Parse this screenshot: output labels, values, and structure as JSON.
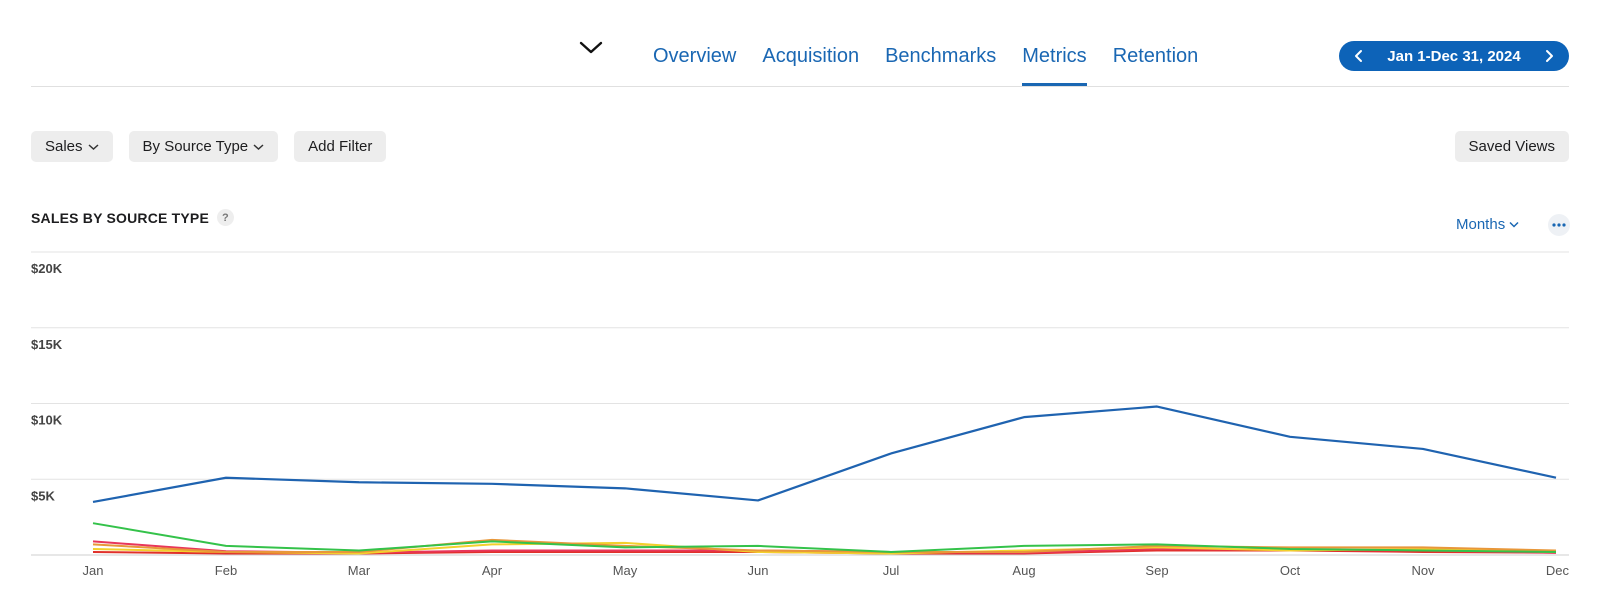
{
  "nav": {
    "tabs": [
      {
        "label": "Overview",
        "active": false
      },
      {
        "label": "Acquisition",
        "active": false
      },
      {
        "label": "Benchmarks",
        "active": false
      },
      {
        "label": "Metrics",
        "active": true
      },
      {
        "label": "Retention",
        "active": false
      }
    ],
    "date_range": "Jan 1-Dec 31, 2024"
  },
  "filters": {
    "metric": "Sales",
    "group_by": "By Source Type",
    "add_filter": "Add Filter",
    "saved_views": "Saved Views"
  },
  "chart_header": {
    "title": "SALES BY SOURCE TYPE",
    "help": "?",
    "period": "Months"
  },
  "colors": {
    "accent": "#1a67b3",
    "pill": "#0d63b8"
  },
  "chart_data": {
    "type": "line",
    "categories": [
      "Jan",
      "Feb",
      "Mar",
      "Apr",
      "May",
      "Jun",
      "Jul",
      "Aug",
      "Sep",
      "Oct",
      "Nov",
      "Dec"
    ],
    "y_ticks": [
      "$20K",
      "$15K",
      "$10K",
      "$5K"
    ],
    "y_tick_values": [
      20000,
      15000,
      10000,
      5000
    ],
    "ylim": [
      0,
      20000
    ],
    "grid": true,
    "series": [
      {
        "color": "#1f63b0",
        "values": [
          3500,
          5100,
          4800,
          4700,
          4400,
          3600,
          6700,
          9100,
          9800,
          7800,
          7000,
          5100
        ]
      },
      {
        "color": "#34c24a",
        "values": [
          2100,
          600,
          300,
          900,
          500,
          600,
          200,
          600,
          700,
          400,
          300,
          200
        ]
      },
      {
        "color": "#e8973a",
        "values": [
          700,
          200,
          200,
          1000,
          600,
          300,
          200,
          200,
          600,
          500,
          500,
          300
        ]
      },
      {
        "color": "#f3d02c",
        "values": [
          400,
          200,
          100,
          700,
          800,
          200,
          100,
          300,
          500,
          300,
          400,
          200
        ]
      },
      {
        "color": "#e8365a",
        "values": [
          900,
          250,
          150,
          300,
          300,
          300,
          200,
          150,
          400,
          350,
          300,
          150
        ]
      },
      {
        "color": "#e0302a",
        "values": [
          200,
          100,
          100,
          200,
          200,
          200,
          100,
          100,
          300,
          300,
          200,
          150
        ]
      }
    ]
  }
}
